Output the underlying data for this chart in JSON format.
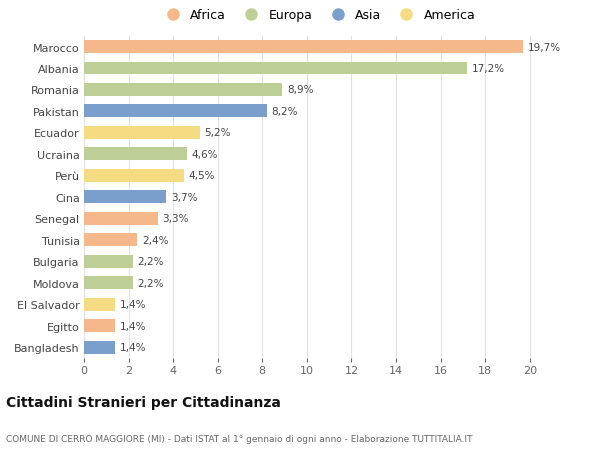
{
  "categories": [
    "Marocco",
    "Albania",
    "Romania",
    "Pakistan",
    "Ecuador",
    "Ucraina",
    "Perù",
    "Cina",
    "Senegal",
    "Tunisia",
    "Bulgaria",
    "Moldova",
    "El Salvador",
    "Egitto",
    "Bangladesh"
  ],
  "values": [
    19.7,
    17.2,
    8.9,
    8.2,
    5.2,
    4.6,
    4.5,
    3.7,
    3.3,
    2.4,
    2.2,
    2.2,
    1.4,
    1.4,
    1.4
  ],
  "labels": [
    "19,7%",
    "17,2%",
    "8,9%",
    "8,2%",
    "5,2%",
    "4,6%",
    "4,5%",
    "3,7%",
    "3,3%",
    "2,4%",
    "2,2%",
    "2,2%",
    "1,4%",
    "1,4%",
    "1,4%"
  ],
  "continents": [
    "Africa",
    "Europa",
    "Europa",
    "Asia",
    "America",
    "Europa",
    "America",
    "Asia",
    "Africa",
    "Africa",
    "Europa",
    "Europa",
    "America",
    "Africa",
    "Asia"
  ],
  "continent_colors": {
    "Africa": "#F5B88A",
    "Europa": "#BDCF96",
    "Asia": "#7B9FCC",
    "America": "#F5DC82"
  },
  "legend_order": [
    "Africa",
    "Europa",
    "Asia",
    "America"
  ],
  "title": "Cittadini Stranieri per Cittadinanza",
  "subtitle": "COMUNE DI CERRO MAGGIORE (MI) - Dati ISTAT al 1° gennaio di ogni anno - Elaborazione TUTTITALIA.IT",
  "xlim": [
    0,
    21
  ],
  "xticks": [
    0,
    2,
    4,
    6,
    8,
    10,
    12,
    14,
    16,
    18,
    20
  ],
  "background_color": "#ffffff",
  "grid_color": "#e0e0e0",
  "bar_height": 0.6
}
